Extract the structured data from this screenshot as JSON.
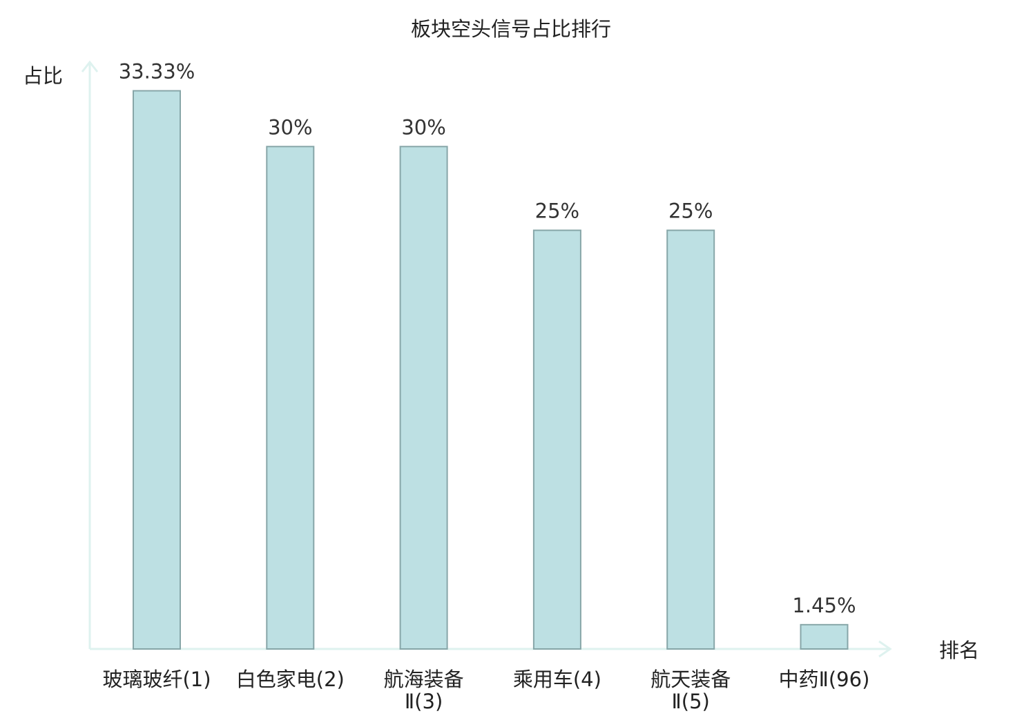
{
  "chart_data": {
    "type": "bar",
    "title": "板块空头信号占比排行",
    "ylabel": "占比",
    "xlabel": "排名",
    "ylim": [
      0,
      35
    ],
    "grid": false,
    "categories": [
      {
        "lines": [
          "玻璃玻纤(1)"
        ],
        "color": "#222222"
      },
      {
        "lines": [
          "白色家电(2)"
        ],
        "color": "#222222"
      },
      {
        "lines": [
          "航海装备",
          "Ⅱ(3)"
        ],
        "color": "#222222"
      },
      {
        "lines": [
          "乘用车(4)"
        ],
        "color": "#222222"
      },
      {
        "lines": [
          "航天装备",
          "Ⅱ(5)"
        ],
        "color": "#222222"
      },
      {
        "lines": [
          "中药Ⅱ(96)"
        ],
        "color": "#e8201b"
      }
    ],
    "values": [
      33.33,
      30,
      30,
      25,
      25,
      1.45
    ],
    "value_labels": [
      "33.33%",
      "30%",
      "30%",
      "25%",
      "25%",
      "1.45%"
    ],
    "colors": {
      "bar_fill": "#bde0e3",
      "bar_stroke": "#87a6a8",
      "axis": "#def2ef",
      "highlight": "#e8201b"
    }
  }
}
